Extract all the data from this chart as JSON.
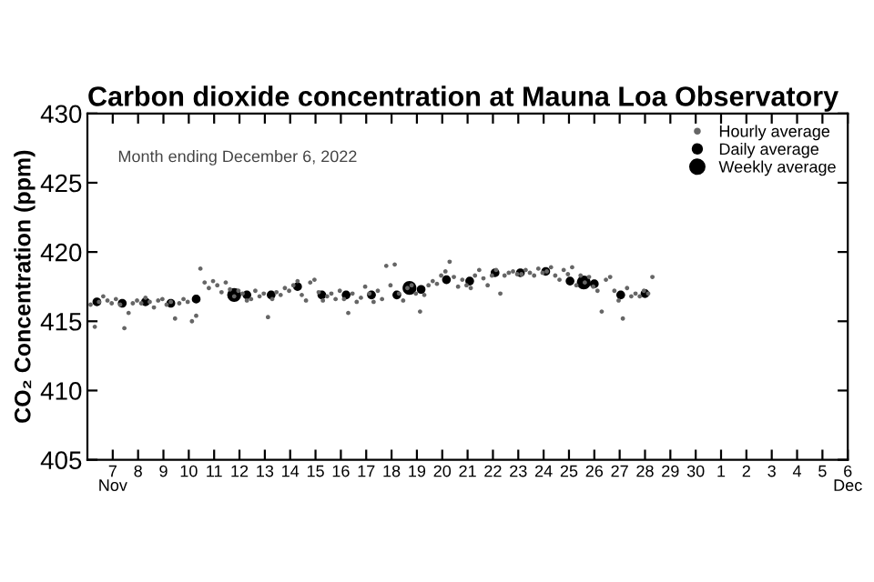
{
  "chart_data": {
    "type": "scatter",
    "title": "Carbon dioxide concentration at Mauna Loa Observatory",
    "ylabel": "CO₂ Concentration (ppm)",
    "annotations": [
      "Month ending December 6, 2022"
    ],
    "xlim": [
      "2022-11-06",
      "2022-12-06"
    ],
    "ylim": [
      405,
      430
    ],
    "yticks": [
      405,
      410,
      415,
      420,
      425,
      430
    ],
    "xticks": [
      {
        "value": "2022-11-07",
        "label": "7\nNov"
      },
      {
        "value": "2022-11-08",
        "label": "8"
      },
      {
        "value": "2022-11-09",
        "label": "9"
      },
      {
        "value": "2022-11-10",
        "label": "10"
      },
      {
        "value": "2022-11-11",
        "label": "11"
      },
      {
        "value": "2022-11-12",
        "label": "12"
      },
      {
        "value": "2022-11-13",
        "label": "13"
      },
      {
        "value": "2022-11-14",
        "label": "14"
      },
      {
        "value": "2022-11-15",
        "label": "15"
      },
      {
        "value": "2022-11-16",
        "label": "16"
      },
      {
        "value": "2022-11-17",
        "label": "17"
      },
      {
        "value": "2022-11-18",
        "label": "18"
      },
      {
        "value": "2022-11-19",
        "label": "19"
      },
      {
        "value": "2022-11-20",
        "label": "20"
      },
      {
        "value": "2022-11-21",
        "label": "21"
      },
      {
        "value": "2022-11-22",
        "label": "22"
      },
      {
        "value": "2022-11-23",
        "label": "23"
      },
      {
        "value": "2022-11-24",
        "label": "24"
      },
      {
        "value": "2022-11-25",
        "label": "25"
      },
      {
        "value": "2022-11-26",
        "label": "26"
      },
      {
        "value": "2022-11-27",
        "label": "27"
      },
      {
        "value": "2022-11-28",
        "label": "28"
      },
      {
        "value": "2022-11-29",
        "label": "29"
      },
      {
        "value": "2022-11-30",
        "label": "30"
      },
      {
        "value": "2022-12-01",
        "label": "1"
      },
      {
        "value": "2022-12-02",
        "label": "2"
      },
      {
        "value": "2022-12-03",
        "label": "3"
      },
      {
        "value": "2022-12-04",
        "label": "4"
      },
      {
        "value": "2022-12-05",
        "label": "5"
      },
      {
        "value": "2022-12-06",
        "label": "6\nDec"
      }
    ],
    "grid": false,
    "legend": "top right",
    "marker": "circle",
    "series": [
      {
        "name": "Hourly average",
        "color": "#666666",
        "x": [
          "2022-11-06T03:00",
          "2022-11-06T07:00",
          "2022-11-06T11:00",
          "2022-11-06T15:00",
          "2022-11-06T19:00",
          "2022-11-06T23:00",
          "2022-11-07T03:00",
          "2022-11-07T07:00",
          "2022-11-07T11:00",
          "2022-11-07T15:00",
          "2022-11-07T19:00",
          "2022-11-07T23:00",
          "2022-11-08T03:00",
          "2022-11-08T07:00",
          "2022-11-08T11:00",
          "2022-11-08T15:00",
          "2022-11-08T19:00",
          "2022-11-08T23:00",
          "2022-11-09T03:00",
          "2022-11-09T07:00",
          "2022-11-09T11:00",
          "2022-11-09T15:00",
          "2022-11-09T19:00",
          "2022-11-09T23:00",
          "2022-11-10T03:00",
          "2022-11-10T07:00",
          "2022-11-10T11:00",
          "2022-11-10T15:00",
          "2022-11-10T19:00",
          "2022-11-10T23:00",
          "2022-11-11T03:00",
          "2022-11-11T07:00",
          "2022-11-11T11:00",
          "2022-11-11T15:00",
          "2022-11-11T19:00",
          "2022-11-11T23:00",
          "2022-11-12T03:00",
          "2022-11-12T07:00",
          "2022-11-12T11:00",
          "2022-11-12T15:00",
          "2022-11-12T19:00",
          "2022-11-12T23:00",
          "2022-11-13T03:00",
          "2022-11-13T07:00",
          "2022-11-13T11:00",
          "2022-11-13T15:00",
          "2022-11-13T19:00",
          "2022-11-13T23:00",
          "2022-11-14T03:00",
          "2022-11-14T07:00",
          "2022-11-14T11:00",
          "2022-11-14T15:00",
          "2022-11-14T19:00",
          "2022-11-14T23:00",
          "2022-11-15T03:00",
          "2022-11-15T07:00",
          "2022-11-15T11:00",
          "2022-11-15T15:00",
          "2022-11-15T19:00",
          "2022-11-15T23:00",
          "2022-11-16T03:00",
          "2022-11-16T07:00",
          "2022-11-16T11:00",
          "2022-11-16T15:00",
          "2022-11-16T19:00",
          "2022-11-16T23:00",
          "2022-11-17T03:00",
          "2022-11-17T07:00",
          "2022-11-17T11:00",
          "2022-11-17T15:00",
          "2022-11-17T19:00",
          "2022-11-17T23:00",
          "2022-11-18T03:00",
          "2022-11-18T07:00",
          "2022-11-18T11:00",
          "2022-11-18T15:00",
          "2022-11-18T19:00",
          "2022-11-18T23:00",
          "2022-11-19T03:00",
          "2022-11-19T07:00",
          "2022-11-19T11:00",
          "2022-11-19T15:00",
          "2022-11-19T19:00",
          "2022-11-19T23:00",
          "2022-11-20T03:00",
          "2022-11-20T07:00",
          "2022-11-20T11:00",
          "2022-11-20T15:00",
          "2022-11-20T19:00",
          "2022-11-20T23:00",
          "2022-11-21T03:00",
          "2022-11-21T07:00",
          "2022-11-21T11:00",
          "2022-11-21T15:00",
          "2022-11-21T19:00",
          "2022-11-21T23:00",
          "2022-11-22T03:00",
          "2022-11-22T07:00",
          "2022-11-22T11:00",
          "2022-11-22T15:00",
          "2022-11-22T19:00",
          "2022-11-22T23:00",
          "2022-11-23T03:00",
          "2022-11-23T07:00",
          "2022-11-23T11:00",
          "2022-11-23T15:00",
          "2022-11-23T19:00",
          "2022-11-23T23:00",
          "2022-11-24T03:00",
          "2022-11-24T07:00",
          "2022-11-24T11:00",
          "2022-11-24T15:00",
          "2022-11-24T19:00",
          "2022-11-24T23:00",
          "2022-11-25T03:00",
          "2022-11-25T07:00",
          "2022-11-25T11:00",
          "2022-11-25T15:00",
          "2022-11-25T19:00",
          "2022-11-25T23:00",
          "2022-11-26T03:00",
          "2022-11-26T07:00",
          "2022-11-26T11:00",
          "2022-11-26T15:00",
          "2022-11-26T19:00",
          "2022-11-26T23:00",
          "2022-11-27T03:00",
          "2022-11-27T07:00",
          "2022-11-27T11:00",
          "2022-11-27T15:00",
          "2022-11-27T19:00",
          "2022-11-27T23:00",
          "2022-11-28T03:00",
          "2022-11-28T07:00"
        ],
        "values": [
          416.2,
          414.6,
          416.4,
          416.8,
          416.5,
          416.3,
          416.6,
          416.2,
          414.5,
          415.6,
          416.3,
          416.5,
          416.3,
          416.7,
          416.4,
          416.0,
          416.5,
          416.6,
          416.2,
          416.4,
          415.2,
          416.3,
          416.6,
          416.4,
          415.0,
          415.4,
          418.8,
          417.8,
          417.4,
          417.9,
          417.6,
          417.1,
          417.8,
          417.3,
          416.8,
          417.2,
          417.0,
          416.5,
          416.6,
          417.2,
          416.8,
          417.0,
          415.3,
          416.6,
          417.1,
          416.9,
          417.4,
          417.2,
          417.6,
          417.9,
          416.9,
          416.5,
          417.8,
          418.0,
          417.1,
          416.5,
          416.8,
          417.0,
          416.6,
          417.2,
          416.6,
          415.6,
          417.0,
          416.4,
          416.7,
          417.5,
          417.0,
          416.4,
          417.2,
          416.6,
          419.0,
          417.6,
          419.1,
          417.0,
          416.5,
          417.4,
          417.6,
          417.0,
          415.7,
          416.9,
          417.6,
          417.9,
          417.7,
          418.3,
          418.6,
          419.3,
          418.2,
          417.5,
          418.0,
          417.6,
          417.4,
          418.3,
          418.7,
          418.1,
          417.6,
          418.3,
          418.7,
          417.0,
          418.3,
          418.5,
          418.6,
          418.4,
          418.4,
          418.7,
          418.5,
          418.3,
          418.8,
          418.5,
          418.6,
          418.9,
          418.3,
          418.0,
          418.7,
          418.4,
          418.9,
          417.6,
          418.3,
          417.8,
          418.2,
          417.5,
          417.2,
          415.7,
          418.0,
          418.2,
          417.2,
          416.5,
          415.2,
          417.4,
          416.8,
          417.0,
          416.8,
          417.2,
          417.0,
          418.2
        ]
      },
      {
        "name": "Daily average",
        "color": "#000000",
        "x": [
          "2022-11-06T09:00",
          "2022-11-07T09:00",
          "2022-11-08T07:00",
          "2022-11-09T07:00",
          "2022-11-10T07:00",
          "2022-11-12T07:00",
          "2022-11-13T06:00",
          "2022-11-14T07:00",
          "2022-11-15T06:00",
          "2022-11-16T05:00",
          "2022-11-17T05:00",
          "2022-11-18T05:00",
          "2022-11-19T04:00",
          "2022-11-20T04:00",
          "2022-11-21T02:00",
          "2022-11-22T02:00",
          "2022-11-23T02:00",
          "2022-11-24T02:00",
          "2022-11-25T01:00",
          "2022-11-26T00:00",
          "2022-11-27T01:00",
          "2022-11-28T00:00"
        ],
        "values": [
          416.4,
          416.3,
          416.4,
          416.3,
          416.6,
          416.9,
          416.9,
          417.5,
          416.9,
          416.9,
          416.9,
          416.9,
          417.3,
          418.0,
          417.9,
          418.5,
          418.5,
          418.6,
          417.9,
          417.7,
          416.9,
          417.0
        ]
      },
      {
        "name": "Weekly average",
        "color": "#000000",
        "x": [
          "2022-11-11T19:00",
          "2022-11-18T17:00",
          "2022-11-25T14:00"
        ],
        "values": [
          416.9,
          417.4,
          417.8
        ]
      }
    ]
  }
}
